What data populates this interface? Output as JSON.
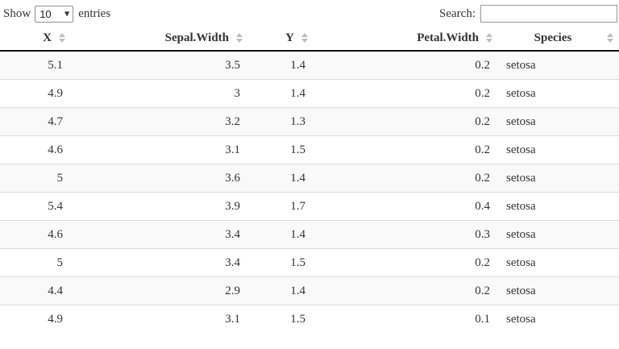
{
  "controls": {
    "show_label_before": "Show",
    "show_label_after": "entries",
    "page_length_value": "10",
    "search_label": "Search:",
    "search_value": ""
  },
  "table": {
    "columns": [
      {
        "label": "X",
        "type": "numeric"
      },
      {
        "label": "Sepal.Width",
        "type": "numeric"
      },
      {
        "label": "Y",
        "type": "numeric"
      },
      {
        "label": "Petal.Width",
        "type": "numeric"
      },
      {
        "label": "Species",
        "type": "text"
      }
    ],
    "rows": [
      [
        "5.1",
        "3.5",
        "1.4",
        "0.2",
        "setosa"
      ],
      [
        "4.9",
        "3",
        "1.4",
        "0.2",
        "setosa"
      ],
      [
        "4.7",
        "3.2",
        "1.3",
        "0.2",
        "setosa"
      ],
      [
        "4.6",
        "3.1",
        "1.5",
        "0.2",
        "setosa"
      ],
      [
        "5",
        "3.6",
        "1.4",
        "0.2",
        "setosa"
      ],
      [
        "5.4",
        "3.9",
        "1.7",
        "0.4",
        "setosa"
      ],
      [
        "4.6",
        "3.4",
        "1.4",
        "0.3",
        "setosa"
      ],
      [
        "5",
        "3.4",
        "1.5",
        "0.2",
        "setosa"
      ],
      [
        "4.4",
        "2.9",
        "1.4",
        "0.2",
        "setosa"
      ],
      [
        "4.9",
        "3.1",
        "1.5",
        "0.1",
        "setosa"
      ]
    ]
  },
  "icons": {
    "sort_icon": "sort-both-icon",
    "select_arrow_icon": "▼"
  },
  "colors": {
    "stripe_row": "#f9f9f9",
    "header_border": "#111111",
    "row_border": "#dddddd",
    "sort_icon": "#bdbdbd",
    "text": "#333333",
    "input_border": "#999999"
  }
}
